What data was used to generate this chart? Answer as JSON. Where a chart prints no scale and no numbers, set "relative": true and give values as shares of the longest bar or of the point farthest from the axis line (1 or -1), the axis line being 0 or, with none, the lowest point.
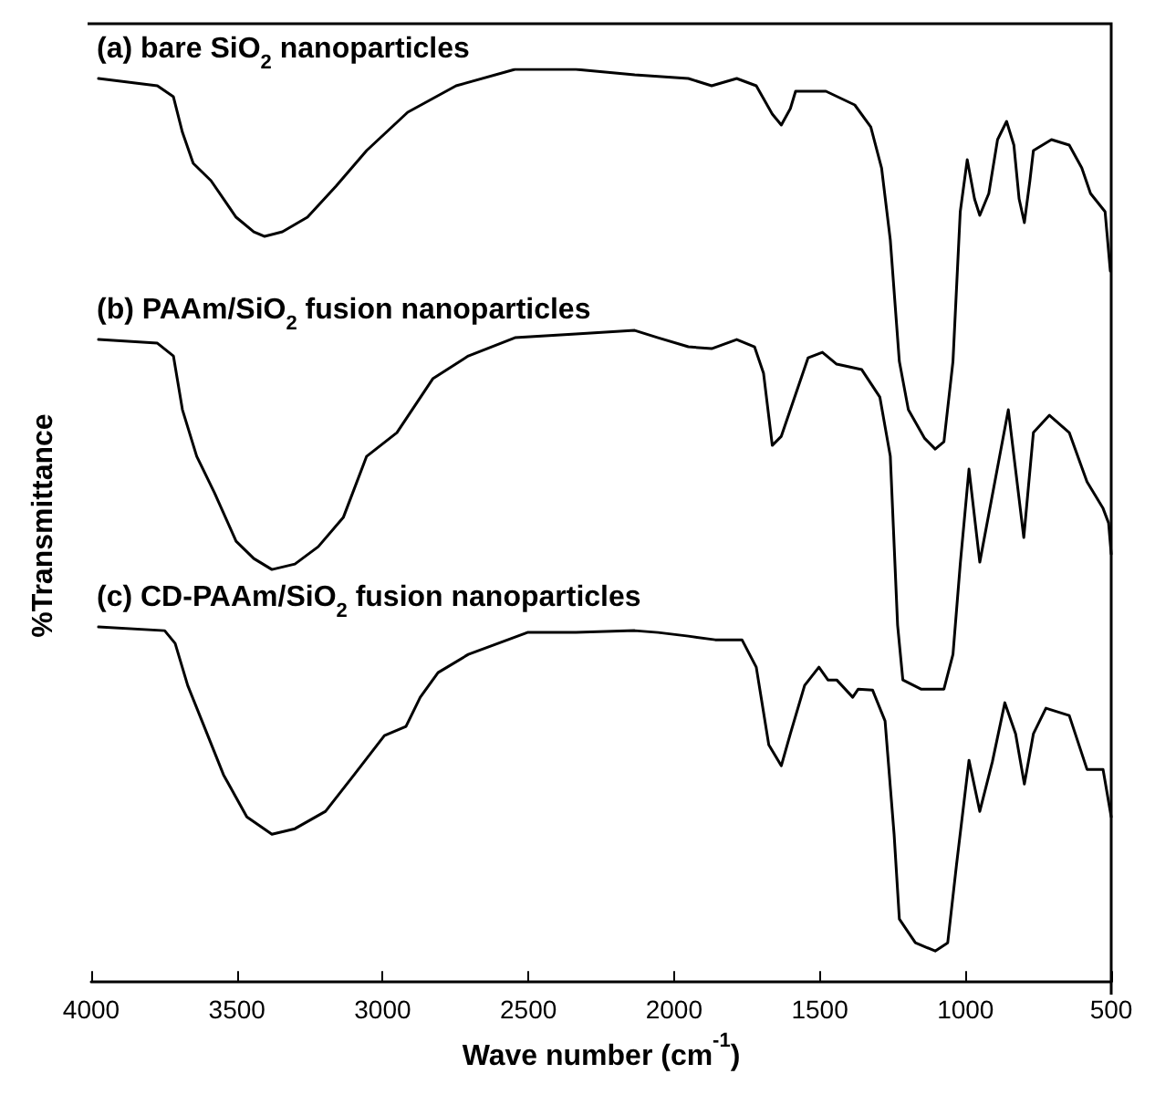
{
  "chart_data": {
    "type": "line",
    "relative": true,
    "xlabel": "Wave number (cm$^{-1}$)",
    "ylabel": "%Transmittance",
    "xlim": [
      4000,
      500
    ],
    "xticks": [
      4000,
      3500,
      3000,
      2500,
      2000,
      1500,
      1000,
      500
    ],
    "grid": false,
    "legend": false,
    "marker": "none",
    "line_style": "solid",
    "series": [
      {
        "name": "(a) bare SiO$_{2}$ nanoparticles",
        "color": "#000000",
        "x": [
          3975,
          3773,
          3718,
          3687,
          3650,
          3589,
          3503,
          3442,
          3405,
          3344,
          3258,
          3160,
          3055,
          2914,
          2748,
          2546,
          2337,
          2135,
          1951,
          1871,
          1785,
          1718,
          1663,
          1632,
          1601,
          1583,
          1479,
          1380,
          1325,
          1288,
          1258,
          1227,
          1196,
          1141,
          1104,
          1074,
          1043,
          1018,
          994,
          969,
          951,
          920,
          890,
          859,
          834,
          816,
          798,
          779,
          767,
          705,
          644,
          601,
          571,
          521,
          503
        ],
        "values": [
          0.99,
          0.982,
          0.97,
          0.931,
          0.897,
          0.878,
          0.838,
          0.822,
          0.817,
          0.822,
          0.838,
          0.872,
          0.911,
          0.953,
          0.982,
          1,
          1,
          0.994,
          0.99,
          0.982,
          0.99,
          0.982,
          0.951,
          0.939,
          0.957,
          0.976,
          0.976,
          0.961,
          0.937,
          0.892,
          0.813,
          0.68,
          0.627,
          0.596,
          0.584,
          0.592,
          0.68,
          0.844,
          0.901,
          0.858,
          0.84,
          0.864,
          0.923,
          0.943,
          0.917,
          0.858,
          0.832,
          0.878,
          0.911,
          0.923,
          0.917,
          0.892,
          0.864,
          0.844,
          0.779
        ]
      },
      {
        "name": "(b) PAAm/SiO$_{2}$ fusion nanoparticles",
        "color": "#000000",
        "x": [
          3975,
          3773,
          3718,
          3687,
          3638,
          3577,
          3503,
          3442,
          3380,
          3301,
          3221,
          3135,
          3055,
          2951,
          2828,
          2706,
          2546,
          2337,
          2135,
          2055,
          1951,
          1871,
          1785,
          1724,
          1693,
          1663,
          1632,
          1601,
          1540,
          1491,
          1442,
          1356,
          1294,
          1258,
          1233,
          1215,
          1153,
          1074,
          1043,
          1018,
          988,
          951,
          853,
          800,
          767,
          712,
          644,
          583,
          528,
          509,
          500
        ],
        "values": [
          0.704,
          0.7,
          0.686,
          0.627,
          0.576,
          0.536,
          0.483,
          0.464,
          0.452,
          0.458,
          0.477,
          0.509,
          0.576,
          0.602,
          0.661,
          0.686,
          0.706,
          0.71,
          0.714,
          0.706,
          0.696,
          0.694,
          0.704,
          0.696,
          0.667,
          0.588,
          0.598,
          0.627,
          0.684,
          0.69,
          0.677,
          0.671,
          0.641,
          0.576,
          0.391,
          0.331,
          0.321,
          0.321,
          0.359,
          0.458,
          0.562,
          0.46,
          0.627,
          0.487,
          0.602,
          0.621,
          0.602,
          0.548,
          0.519,
          0.503,
          0.469
        ]
      },
      {
        "name": "(c) CD-PAAm/SiO$_{2}$ fusion nanoparticles",
        "color": "#000000",
        "x": [
          3975,
          3748,
          3712,
          3669,
          3620,
          3546,
          3466,
          3380,
          3301,
          3196,
          3098,
          2994,
          2920,
          2871,
          2810,
          2706,
          2503,
          2337,
          2135,
          2055,
          1951,
          1859,
          1767,
          1718,
          1675,
          1632,
          1601,
          1552,
          1503,
          1472,
          1442,
          1387,
          1368,
          1319,
          1276,
          1245,
          1227,
          1172,
          1104,
          1061,
          1031,
          988,
          951,
          908,
          865,
          828,
          798,
          767,
          724,
          644,
          583,
          528,
          500
        ],
        "values": [
          0.389,
          0.385,
          0.371,
          0.325,
          0.286,
          0.227,
          0.181,
          0.162,
          0.168,
          0.187,
          0.227,
          0.27,
          0.28,
          0.312,
          0.339,
          0.359,
          0.383,
          0.383,
          0.385,
          0.383,
          0.379,
          0.375,
          0.375,
          0.345,
          0.26,
          0.237,
          0.272,
          0.325,
          0.345,
          0.331,
          0.331,
          0.312,
          0.321,
          0.32,
          0.286,
          0.162,
          0.069,
          0.043,
          0.034,
          0.043,
          0.128,
          0.243,
          0.187,
          0.241,
          0.306,
          0.272,
          0.217,
          0.272,
          0.3,
          0.292,
          0.233,
          0.233,
          0.181
        ]
      }
    ]
  }
}
